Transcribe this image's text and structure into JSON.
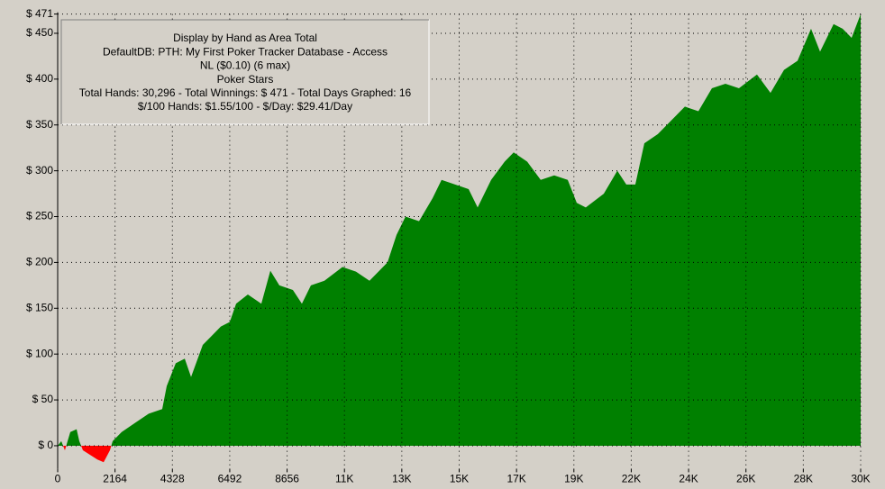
{
  "chart_data": {
    "type": "area",
    "annotations": [
      "Display by Hand as Area Total",
      "DefaultDB: PTH: My First Poker Tracker Database - Access",
      "NL ($0.10) (6 max)",
      "Poker Stars",
      "Total Hands: 30,296 - Total Winnings: $ 471 - Total Days Graphed: 16",
      "$/100 Hands: $1.55/100 - $/Day: $29.41/Day"
    ],
    "x": [
      0,
      136,
      272,
      476,
      714,
      816,
      952,
      1224,
      1496,
      1734,
      1972,
      2074,
      2414,
      2924,
      3434,
      3944,
      4114,
      4454,
      4794,
      5032,
      5474,
      5814,
      6154,
      6494,
      6732,
      7174,
      7684,
      8024,
      8364,
      8874,
      9214,
      9554,
      10064,
      10744,
      11254,
      11764,
      12444,
      12784,
      13124,
      13634,
      14144,
      14484,
      14994,
      15504,
      15844,
      16354,
      16864,
      17204,
      17714,
      18224,
      18734,
      19244,
      19584,
      19924,
      20604,
      21114,
      21454,
      21794,
      22134,
      22644,
      23154,
      23664,
      24174,
      24684,
      25194,
      25704,
      26384,
      26894,
      27404,
      27914,
      28424,
      28764,
      29274,
      29614,
      29954,
      30296
    ],
    "values": [
      0,
      5,
      -5,
      15,
      18,
      5,
      -5,
      -10,
      -15,
      -18,
      -5,
      5,
      15,
      25,
      35,
      40,
      65,
      90,
      95,
      75,
      110,
      120,
      130,
      135,
      155,
      165,
      155,
      191,
      175,
      170,
      155,
      175,
      180,
      195,
      190,
      180,
      200,
      230,
      250,
      245,
      270,
      290,
      285,
      280,
      260,
      290,
      310,
      320,
      310,
      290,
      295,
      290,
      265,
      260,
      275,
      300,
      285,
      285,
      330,
      340,
      355,
      370,
      365,
      390,
      395,
      390,
      405,
      385,
      410,
      420,
      455,
      430,
      460,
      455,
      445,
      471
    ],
    "color": "#008000",
    "negative_color": "#ff0000",
    "xlim": [
      0,
      30296
    ],
    "xticks": [
      0,
      2164,
      4328,
      6492,
      8656,
      {
        "value": 10820,
        "label": "11K"
      },
      {
        "value": 12984,
        "label": "13K"
      },
      {
        "value": 15148,
        "label": "15K"
      },
      {
        "value": 17312,
        "label": "17K"
      },
      {
        "value": 19476,
        "label": "19K"
      },
      {
        "value": 21640,
        "label": "22K"
      },
      {
        "value": 23804,
        "label": "24K"
      },
      {
        "value": 25968,
        "label": "26K"
      },
      {
        "value": 28132,
        "label": "28K"
      },
      {
        "value": 30296,
        "label": "30K"
      }
    ],
    "ylim": [
      -25,
      471
    ],
    "yticks": [
      {
        "value": 0,
        "label": "$ 0"
      },
      {
        "value": 50,
        "label": "$ 50"
      },
      {
        "value": 100,
        "label": "$ 100"
      },
      {
        "value": 150,
        "label": "$ 150"
      },
      {
        "value": 200,
        "label": "$ 200"
      },
      {
        "value": 250,
        "label": "$ 250"
      },
      {
        "value": 300,
        "label": "$ 300"
      },
      {
        "value": 350,
        "label": "$ 350"
      },
      {
        "value": 400,
        "label": "$ 400"
      },
      {
        "value": 450,
        "label": "$ 450"
      },
      {
        "value": 471,
        "label": "$ 471"
      }
    ],
    "grid": true
  }
}
